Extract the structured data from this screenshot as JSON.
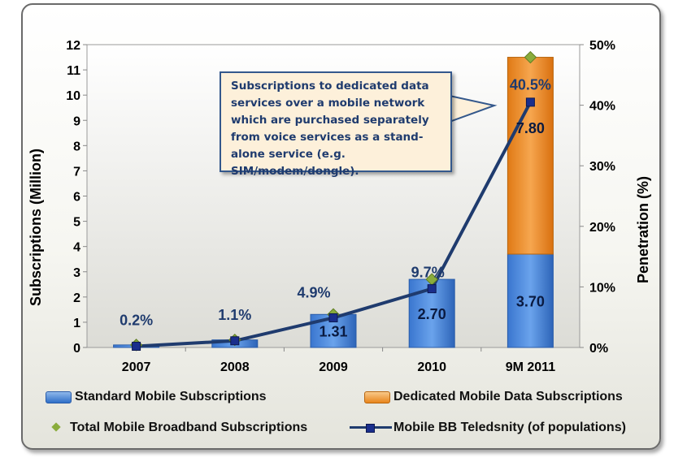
{
  "chart_data": {
    "type": "bar",
    "stacked": true,
    "categories": [
      "2007",
      "2008",
      "2009",
      "2010",
      "9M 2011"
    ],
    "series": [
      {
        "name": "Standard Mobile Subscriptions",
        "kind": "bar",
        "axis": "left",
        "color": "#3a7bd5",
        "values": [
          0.1,
          0.3,
          1.31,
          2.7,
          3.7
        ],
        "labels": [
          "",
          "",
          "1.31",
          "2.70",
          "3.70"
        ]
      },
      {
        "name": "Dedicated Mobile Data Subscriptions",
        "kind": "bar",
        "axis": "left",
        "color": "#ee8a24",
        "values": [
          0,
          0,
          0,
          0,
          7.8
        ],
        "labels": [
          "",
          "",
          "",
          "",
          "7.80"
        ]
      },
      {
        "name": "Total Mobile Broadband Subscriptions",
        "kind": "marker",
        "axis": "left",
        "color": "#8aac3c",
        "values": [
          0.1,
          0.3,
          1.31,
          2.7,
          11.5
        ]
      },
      {
        "name": "Mobile BB Teledsnity (of populations)",
        "kind": "line",
        "axis": "right",
        "color": "#1f3b6e",
        "values": [
          0.2,
          1.1,
          4.9,
          9.7,
          40.5
        ],
        "labels": [
          "0.2%",
          "1.1%",
          "4.9%",
          "9.7%",
          "40.5%"
        ]
      }
    ],
    "ylabel": "Subscriptions (Million)",
    "ylim": [
      0,
      12
    ],
    "yticks": [
      "0",
      "1",
      "2",
      "3",
      "4",
      "5",
      "6",
      "7",
      "8",
      "9",
      "10",
      "11",
      "12"
    ],
    "y2label": "Penetration (%)",
    "y2lim": [
      0,
      50
    ],
    "y2ticks": [
      "0%",
      "10%",
      "20%",
      "30%",
      "40%",
      "50%"
    ],
    "grid": false,
    "legend": "bottom"
  },
  "callout_text": "Subscriptions to dedicated data services over a mobile network which are purchased separately from voice services as a stand-alone service (e.g. SIM/modem/dongle).",
  "legend": {
    "standard": "Standard Mobile Subscriptions",
    "dedicated": "Dedicated Mobile Data Subscriptions",
    "total": "Total Mobile Broadband Subscriptions",
    "teledensity": "Mobile BB Teledsnity (of populations)"
  }
}
